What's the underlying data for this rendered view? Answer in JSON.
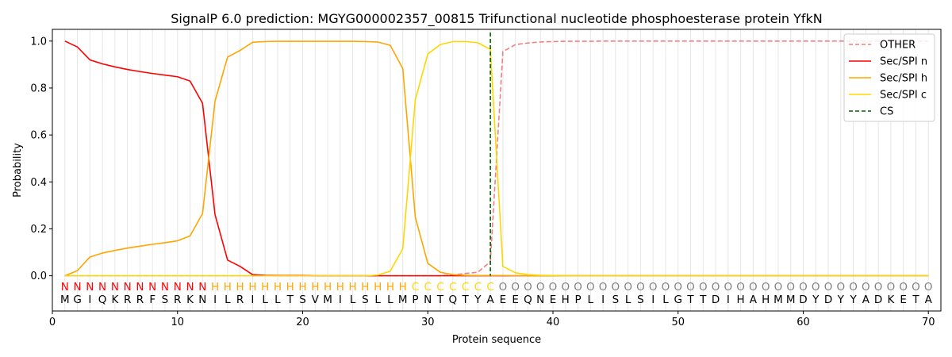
{
  "chart_data": {
    "type": "line",
    "title": "SignalP 6.0 prediction: MGYG000002357_00815 Trifunctional nucleotide phosphoesterase protein YfkN",
    "xlabel": "Protein sequence",
    "ylabel": "Probability",
    "xlim": [
      0,
      71
    ],
    "ylim": [
      -0.15,
      1.05
    ],
    "x_ticks": [
      0,
      10,
      20,
      30,
      40,
      50,
      60,
      70
    ],
    "y_ticks": [
      0.0,
      0.2,
      0.4,
      0.6,
      0.8,
      1.0
    ],
    "x_tick_labels": [
      "0",
      "10",
      "20",
      "30",
      "40",
      "50",
      "60",
      "70"
    ],
    "y_tick_labels": [
      "0.0",
      "0.2",
      "0.4",
      "0.6",
      "0.8",
      "1.0"
    ],
    "grid": "vertical lines at each residue",
    "legend_position": "top-right",
    "sequence": [
      "M",
      "G",
      "I",
      "Q",
      "K",
      "R",
      "R",
      "F",
      "S",
      "R",
      "K",
      "N",
      "I",
      "L",
      "R",
      "I",
      "L",
      "L",
      "T",
      "S",
      "V",
      "M",
      "I",
      "L",
      "S",
      "L",
      "L",
      "M",
      "P",
      "N",
      "T",
      "Q",
      "T",
      "Y",
      "A",
      "E",
      "E",
      "Q",
      "N",
      "E",
      "H",
      "P",
      "L",
      "I",
      "S",
      "L",
      "S",
      "I",
      "L",
      "G",
      "T",
      "T",
      "D",
      "I",
      "H",
      "A",
      "H",
      "M",
      "M",
      "D",
      "Y",
      "D",
      "Y",
      "Y",
      "A",
      "D",
      "K",
      "E",
      "T",
      "A"
    ],
    "regions": [
      "N",
      "N",
      "N",
      "N",
      "N",
      "N",
      "N",
      "N",
      "N",
      "N",
      "N",
      "N",
      "H",
      "H",
      "H",
      "H",
      "H",
      "H",
      "H",
      "H",
      "H",
      "H",
      "H",
      "H",
      "H",
      "H",
      "H",
      "H",
      "C",
      "C",
      "C",
      "C",
      "C",
      "C",
      "C",
      "O",
      "O",
      "O",
      "O",
      "O",
      "O",
      "O",
      "O",
      "O",
      "O",
      "O",
      "O",
      "O",
      "O",
      "O",
      "O",
      "O",
      "O",
      "O",
      "O",
      "O",
      "O",
      "O",
      "O",
      "O",
      "O",
      "O",
      "O",
      "O",
      "O",
      "O",
      "O",
      "O",
      "O",
      "O"
    ],
    "region_colors": {
      "N": "#ff0000",
      "H": "#ffa500",
      "C": "#ffd700",
      "O": "#808080"
    },
    "cleavage_site": 35,
    "series": [
      {
        "name": "OTHER",
        "color": "#f08080",
        "dash": "dashed",
        "values": [
          0,
          0,
          0,
          0,
          0,
          0,
          0,
          0,
          0,
          0,
          0,
          0,
          0,
          0,
          0,
          0,
          0,
          0,
          0,
          0,
          0,
          0,
          0,
          0,
          0,
          0,
          0,
          0,
          0,
          0,
          0,
          0.003,
          0.01,
          0.015,
          0.06,
          0.955,
          0.985,
          0.992,
          0.996,
          0.998,
          0.999,
          0.999,
          0.999,
          1,
          1,
          1,
          1,
          1,
          1,
          1,
          1,
          1,
          1,
          1,
          1,
          1,
          1,
          1,
          1,
          1,
          1,
          1,
          1,
          1,
          1,
          1,
          1,
          1,
          1,
          1
        ]
      },
      {
        "name": "Sec/SPI n",
        "color": "#ff0000",
        "dash": "solid",
        "values": [
          1.0,
          0.975,
          0.92,
          0.903,
          0.89,
          0.879,
          0.87,
          0.862,
          0.855,
          0.848,
          0.83,
          0.735,
          0.26,
          0.067,
          0.04,
          0.005,
          0.002,
          0.001,
          0.001,
          0.001,
          0,
          0,
          0,
          0,
          0,
          0,
          0,
          0,
          0,
          0,
          0,
          0,
          0,
          0,
          0,
          0,
          0,
          0,
          0,
          0,
          0,
          0,
          0,
          0,
          0,
          0,
          0,
          0,
          0,
          0,
          0,
          0,
          0,
          0,
          0,
          0,
          0,
          0,
          0,
          0,
          0,
          0,
          0,
          0,
          0,
          0,
          0,
          0,
          0,
          0
        ]
      },
      {
        "name": "Sec/SPI h",
        "color": "#ffa500",
        "dash": "solid",
        "values": [
          0,
          0.022,
          0.08,
          0.097,
          0.108,
          0.118,
          0.126,
          0.134,
          0.141,
          0.149,
          0.17,
          0.265,
          0.745,
          0.932,
          0.96,
          0.995,
          0.998,
          0.999,
          0.999,
          0.999,
          0.999,
          0.999,
          0.999,
          0.999,
          0.998,
          0.996,
          0.982,
          0.883,
          0.25,
          0.053,
          0.015,
          0.005,
          0.002,
          0.001,
          0.001,
          0.001,
          0,
          0,
          0,
          0,
          0,
          0,
          0,
          0,
          0,
          0,
          0,
          0,
          0,
          0,
          0,
          0,
          0,
          0,
          0,
          0,
          0,
          0,
          0,
          0,
          0,
          0,
          0,
          0,
          0,
          0,
          0,
          0,
          0,
          0
        ]
      },
      {
        "name": "Sec/SPI c",
        "color": "#ffd700",
        "dash": "solid",
        "values": [
          0,
          0,
          0,
          0,
          0,
          0,
          0,
          0,
          0,
          0,
          0,
          0,
          0,
          0,
          0,
          0,
          0,
          0,
          0,
          0,
          0,
          0,
          0,
          0,
          0,
          0.003,
          0.02,
          0.115,
          0.75,
          0.945,
          0.985,
          0.998,
          0.998,
          0.993,
          0.965,
          0.04,
          0.013,
          0.005,
          0.002,
          0.001,
          0,
          0,
          0,
          0,
          0,
          0,
          0,
          0,
          0,
          0,
          0,
          0,
          0,
          0,
          0,
          0,
          0,
          0,
          0,
          0,
          0,
          0,
          0,
          0,
          0,
          0,
          0,
          0,
          0,
          0
        ]
      }
    ],
    "cs_legend": {
      "name": "CS",
      "color": "#006400",
      "dash": "dashed"
    }
  }
}
